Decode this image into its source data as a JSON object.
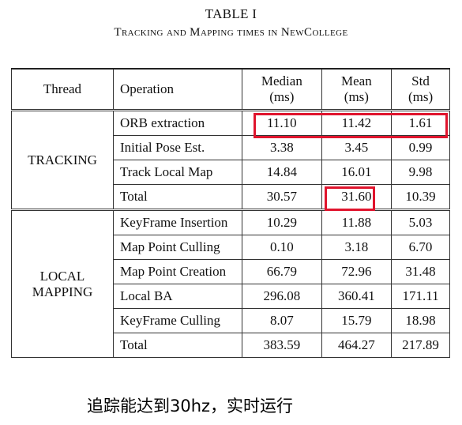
{
  "table": {
    "label": "TABLE I",
    "caption": "Tracking and Mapping times in NewCollege",
    "headers": {
      "thread": "Thread",
      "operation": "Operation",
      "median": "Median (ms)",
      "mean": "Mean (ms)",
      "std": "Std (ms)"
    },
    "sections": [
      {
        "thread": "TRACKING",
        "rows": [
          {
            "operation": "ORB extraction",
            "median": "11.10",
            "mean": "11.42",
            "std": "1.61"
          },
          {
            "operation": "Initial Pose Est.",
            "median": "3.38",
            "mean": "3.45",
            "std": "0.99"
          },
          {
            "operation": "Track Local Map",
            "median": "14.84",
            "mean": "16.01",
            "std": "9.98"
          },
          {
            "operation": "Total",
            "median": "30.57",
            "mean": "31.60",
            "std": "10.39"
          }
        ]
      },
      {
        "thread": "LOCAL MAPPING",
        "rows": [
          {
            "operation": "KeyFrame Insertion",
            "median": "10.29",
            "mean": "11.88",
            "std": "5.03"
          },
          {
            "operation": "Map Point Culling",
            "median": "0.10",
            "mean": "3.18",
            "std": "6.70"
          },
          {
            "operation": "Map Point Creation",
            "median": "66.79",
            "mean": "72.96",
            "std": "31.48"
          },
          {
            "operation": "Local BA",
            "median": "296.08",
            "mean": "360.41",
            "std": "171.11"
          },
          {
            "operation": "KeyFrame Culling",
            "median": "8.07",
            "mean": "15.79",
            "std": "18.98"
          },
          {
            "operation": "Total",
            "median": "383.59",
            "mean": "464.27",
            "std": "217.89"
          }
        ]
      }
    ]
  },
  "highlight_color": "#e0142d",
  "annotation": "追踪能达到30hz，实时运行"
}
